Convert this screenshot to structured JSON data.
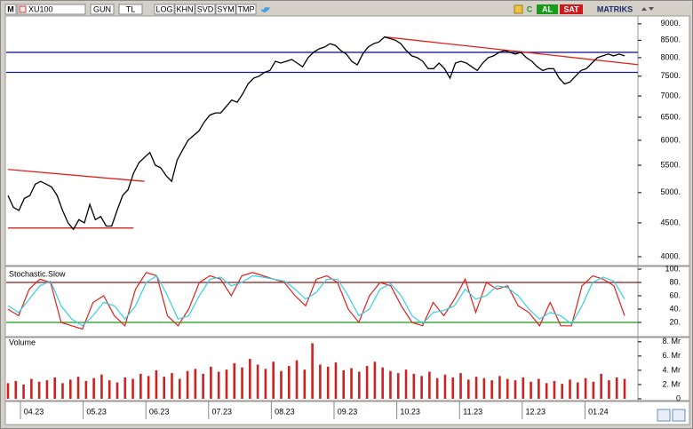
{
  "toolbar": {
    "logo": "M",
    "symbol": "XU100",
    "items": [
      "GUN",
      "TL",
      "LOG",
      "KHN",
      "SVD",
      "SYM",
      "TMP"
    ],
    "c": "C",
    "buy": "AL",
    "sell": "SAT",
    "brand": "MATRIKS"
  },
  "x_labels": [
    "04.23",
    "05.23",
    "06.23",
    "07.23",
    "08.23",
    "09.23",
    "10.23",
    "11.23",
    "12.23",
    "01.24"
  ],
  "chart_data": [
    {
      "type": "line",
      "log_scale": true,
      "ylim": [
        3890,
        9250
      ],
      "yticks": [
        {
          "value": 4000,
          "label": "4000."
        },
        {
          "value": 4500,
          "label": "4500."
        },
        {
          "value": 5000,
          "label": "5000."
        },
        {
          "value": 5500,
          "label": "5500."
        },
        {
          "value": 6000,
          "label": "6000."
        },
        {
          "value": 6500,
          "label": "6500."
        },
        {
          "value": 7000,
          "label": "7000."
        },
        {
          "value": 7500,
          "label": "7500."
        },
        {
          "value": 8000,
          "label": "8000."
        },
        {
          "value": 8500,
          "label": "8500."
        },
        {
          "value": 9000,
          "label": "9000."
        }
      ],
      "series": [
        {
          "color": "#000000",
          "values": [
            4950,
            4750,
            4700,
            4900,
            4950,
            5150,
            5200,
            5150,
            5100,
            4950,
            4700,
            4500,
            4400,
            4550,
            4500,
            4800,
            4550,
            4600,
            4450,
            4450,
            4700,
            4950,
            5050,
            5350,
            5550,
            5650,
            5750,
            5500,
            5450,
            5300,
            5200,
            5600,
            5800,
            6000,
            6100,
            6200,
            6400,
            6550,
            6600,
            6600,
            6750,
            6900,
            6850,
            7050,
            7300,
            7450,
            7500,
            7600,
            7650,
            7900,
            7850,
            7900,
            7950,
            7850,
            7750,
            8000,
            8150,
            8250,
            8300,
            8400,
            8350,
            8200,
            8100,
            7900,
            7800,
            8100,
            8300,
            8400,
            8450,
            8600,
            8550,
            8500,
            8400,
            8200,
            8050,
            8000,
            7900,
            7700,
            7700,
            7850,
            7700,
            7450,
            7850,
            7900,
            7850,
            7750,
            7650,
            7850,
            8000,
            8050,
            8150,
            8200,
            8150,
            8100,
            8150,
            8000,
            7900,
            7750,
            7650,
            7700,
            7700,
            7450,
            7300,
            7350,
            7500,
            7650,
            7700,
            7850,
            8000,
            8050,
            8100,
            8050,
            8100,
            8050
          ]
        }
      ],
      "hlines": [
        {
          "value": 8150,
          "color": "#1c1c9c"
        },
        {
          "value": 7600,
          "color": "#1c1c9c"
        }
      ],
      "trendlines": [
        {
          "color": "#e0201c",
          "points": [
            [
              69,
              8600
            ],
            [
              116,
              7800
            ]
          ]
        },
        {
          "color": "#e0201c",
          "points": [
            [
              0,
              5420
            ],
            [
              25,
              5200
            ]
          ]
        },
        {
          "color": "#e0201c",
          "points": [
            [
              0,
              4420
            ],
            [
              23,
              4420
            ]
          ]
        }
      ]
    },
    {
      "type": "line",
      "title": "Stochastic.Slow",
      "ylim": [
        0,
        100
      ],
      "yticks": [
        {
          "value": 20,
          "label": "20."
        },
        {
          "value": 40,
          "label": "40."
        },
        {
          "value": 60,
          "label": "60."
        },
        {
          "value": 80,
          "label": "80."
        },
        {
          "value": 100,
          "label": "100."
        }
      ],
      "series": [
        {
          "color": "#e0201c",
          "values": [
            40,
            30,
            70,
            85,
            80,
            20,
            15,
            10,
            50,
            60,
            30,
            15,
            70,
            95,
            90,
            30,
            15,
            40,
            80,
            90,
            85,
            60,
            90,
            95,
            90,
            85,
            80,
            60,
            45,
            85,
            90,
            80,
            40,
            20,
            60,
            80,
            75,
            45,
            20,
            15,
            50,
            30,
            55,
            85,
            35,
            80,
            70,
            75,
            45,
            35,
            15,
            50,
            15,
            15,
            75,
            90,
            85,
            75,
            30
          ]
        },
        {
          "color": "#33d0e6",
          "values": [
            45,
            35,
            55,
            75,
            82,
            45,
            25,
            15,
            30,
            50,
            45,
            25,
            45,
            80,
            90,
            60,
            25,
            30,
            60,
            85,
            88,
            75,
            80,
            90,
            88,
            85,
            82,
            70,
            55,
            65,
            85,
            85,
            60,
            30,
            40,
            70,
            78,
            60,
            30,
            18,
            35,
            38,
            45,
            70,
            55,
            60,
            75,
            72,
            60,
            40,
            25,
            35,
            30,
            18,
            45,
            80,
            88,
            82,
            55
          ]
        }
      ],
      "hlines": [
        {
          "value": 80,
          "color": "#8b1a1a"
        },
        {
          "value": 20,
          "color": "#1a9a1a"
        }
      ]
    },
    {
      "type": "bar",
      "title": "Volume",
      "ylim": [
        0,
        8.6
      ],
      "color": "#cc2222",
      "yticks": [
        0,
        {
          "value": 2,
          "label": "2. Mr"
        },
        {
          "value": 4,
          "label": "4. Mr"
        },
        {
          "value": 6,
          "label": "6. Mr"
        },
        {
          "value": 8,
          "label": "8. Mr"
        }
      ],
      "values": [
        2.2,
        2.5,
        2.0,
        2.8,
        2.4,
        2.6,
        3.0,
        2.2,
        2.7,
        3.1,
        2.5,
        2.9,
        3.4,
        2.6,
        2.3,
        3.0,
        2.8,
        3.5,
        3.2,
        4.0,
        3.1,
        3.6,
        2.8,
        3.9,
        4.2,
        3.5,
        4.5,
        3.8,
        4.1,
        5.0,
        4.4,
        5.6,
        4.8,
        4.2,
        5.2,
        3.9,
        4.6,
        5.4,
        4.1,
        7.8,
        4.8,
        4.5,
        5.1,
        4.0,
        4.3,
        3.8,
        4.6,
        5.2,
        4.4,
        3.9,
        3.6,
        4.1,
        3.5,
        3.2,
        3.8,
        2.9,
        3.4,
        3.0,
        3.6,
        2.7,
        3.1,
        2.9,
        2.6,
        3.2,
        2.8,
        2.6,
        3.0,
        2.4,
        2.8,
        2.2,
        2.5,
        2.1,
        2.7,
        2.3,
        2.9,
        2.4,
        3.5,
        2.6,
        3.0,
        2.8
      ]
    }
  ]
}
